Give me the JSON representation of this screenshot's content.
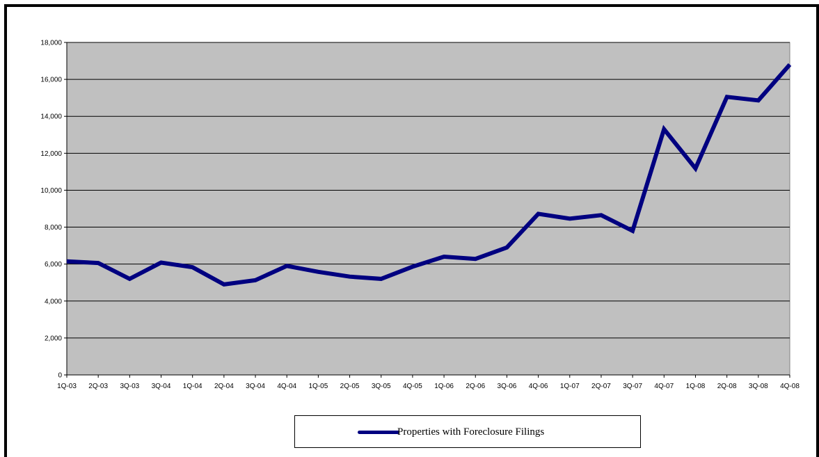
{
  "chart_data": {
    "type": "line",
    "title": "",
    "xlabel": "",
    "ylabel": "",
    "categories": [
      "1Q-03",
      "2Q-03",
      "3Q-03",
      "3Q-04",
      "1Q-04",
      "2Q-04",
      "3Q-04",
      "4Q-04",
      "1Q-05",
      "2Q-05",
      "3Q-05",
      "4Q-05",
      "1Q-06",
      "2Q-06",
      "3Q-06",
      "4Q-06",
      "1Q-07",
      "2Q-07",
      "3Q-07",
      "4Q-07",
      "1Q-08",
      "2Q-08",
      "3Q-08",
      "4Q-08"
    ],
    "series": [
      {
        "name": "Properties with Foreclosure Filings",
        "color": "#000080",
        "values": [
          6150,
          6060,
          5200,
          6080,
          5830,
          4900,
          5130,
          5900,
          5580,
          5320,
          5200,
          5860,
          6400,
          6280,
          6900,
          8720,
          8460,
          8650,
          7800,
          13300,
          11180,
          15050,
          14860,
          16800
        ]
      }
    ],
    "ylim": [
      0,
      18000
    ],
    "yticks": [
      0,
      2000,
      4000,
      6000,
      8000,
      10000,
      12000,
      14000,
      16000,
      18000
    ],
    "ytick_labels": [
      "0",
      "2,000",
      "4,000",
      "6,000",
      "8,000",
      "10,000",
      "12,000",
      "14,000",
      "16,000",
      "18,000"
    ],
    "grid": "horizontal",
    "plot_background": "#c0c0c0",
    "legend_position": "bottom"
  }
}
